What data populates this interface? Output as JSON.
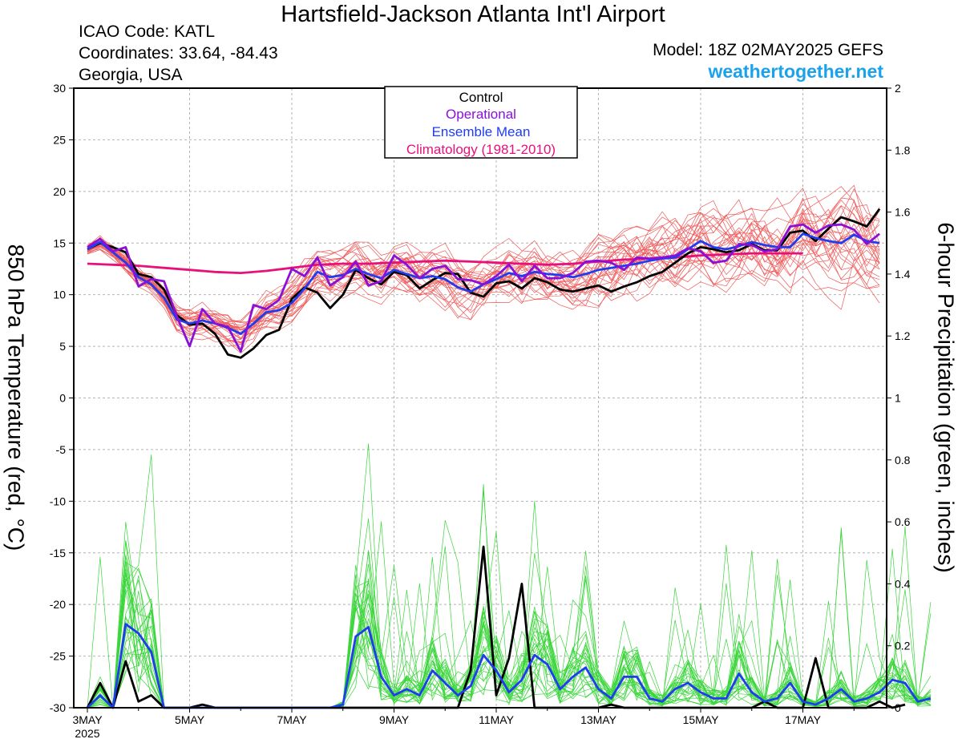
{
  "header": {
    "title": "Hartsfield-Jackson Atlanta Int'l Airport",
    "icao": "ICAO Code: KATL",
    "coordinates": "Coordinates: 33.64, -84.43",
    "region": "Georgia, USA",
    "model": "Model: 18Z 02MAY2025 GEFS",
    "website": "weathertogether.net"
  },
  "colors": {
    "temperature_members": "#f05a5a",
    "precip_members": "#3ad63a",
    "control": "#000000",
    "operational": "#8a10d8",
    "ensemble_mean": "#1f3cf0",
    "climatology": "#e8107a"
  },
  "chart_data": {
    "type": "line",
    "title": "Hartsfield-Jackson Atlanta Int'l Airport",
    "ylabel": "850 hPa Temperature (red, °C)",
    "y2label": "6-hour Precipitation (green, inches)",
    "ylim": [
      -30,
      30
    ],
    "y2lim": [
      0,
      2
    ],
    "yticks": [
      "30",
      "25",
      "20",
      "15",
      "10",
      "5",
      "0",
      "-5",
      "-10",
      "-15",
      "-20",
      "-25",
      "-30"
    ],
    "y2ticks": [
      "2",
      "1.8",
      "1.6",
      "1.4",
      "1.2",
      "1",
      "0.8",
      "0.6",
      "0.4",
      "0.2",
      "0"
    ],
    "x_start": "2025-05-03T00Z",
    "x_step_hours": 6,
    "xticks": [
      {
        "label": "3MAY",
        "sublabel": "2025",
        "day": 0
      },
      {
        "label": "5MAY",
        "day": 2
      },
      {
        "label": "7MAY",
        "day": 4
      },
      {
        "label": "9MAY",
        "day": 6
      },
      {
        "label": "11MAY",
        "day": 8
      },
      {
        "label": "13MAY",
        "day": 10
      },
      {
        "label": "15MAY",
        "day": 12
      },
      {
        "label": "17MAY",
        "day": 14
      }
    ],
    "grid": true,
    "legend": {
      "position": "top-center",
      "entries": [
        "Control",
        "Operational",
        "Ensemble Mean",
        "Climatology (1981-2010)"
      ]
    },
    "temperature": {
      "control": [
        14.4,
        15.0,
        14.6,
        14.1,
        12.0,
        11.7,
        10.5,
        8.0,
        7.1,
        7.2,
        6.2,
        4.2,
        3.9,
        4.8,
        6.1,
        6.6,
        9.6,
        10.7,
        10.2,
        8.7,
        10.0,
        12.4,
        11.6,
        11.0,
        12.2,
        11.9,
        10.6,
        11.4,
        12.1,
        12.0,
        10.2,
        9.8,
        11.1,
        11.3,
        10.6,
        11.6,
        11.2,
        10.5,
        10.3,
        10.6,
        10.9,
        10.3,
        10.8,
        11.2,
        11.8,
        12.2,
        13.1,
        14.0,
        14.6,
        14.4,
        14.1,
        14.3,
        14.9,
        14.3,
        14.3,
        16.0,
        16.2,
        15.2,
        16.4,
        17.5,
        17.1,
        16.6,
        18.3
      ],
      "operational": [
        14.6,
        15.4,
        14.2,
        14.6,
        10.8,
        11.5,
        11.3,
        7.9,
        5.0,
        8.6,
        7.2,
        6.9,
        4.5,
        9.0,
        8.6,
        9.5,
        12.5,
        11.8,
        13.6,
        10.9,
        11.7,
        13.2,
        10.9,
        11.3,
        13.8,
        12.9,
        11.6,
        12.5,
        12.8,
        11.5,
        11.4,
        11.0,
        11.8,
        12.9,
        11.3,
        12.8,
        11.6,
        11.6,
        12.1,
        13.2,
        13.3,
        13.1,
        12.4,
        13.6,
        13.5,
        13.6,
        13.8,
        14.5,
        14.2,
        13.1,
        13.3,
        14.9,
        14.8,
        14.2,
        14.4,
        16.6,
        16.8,
        16.0,
        16.7,
        16.8,
        16.3,
        14.9,
        15.9
      ],
      "ensemble_mean": [
        14.4,
        15.1,
        14.1,
        13.1,
        11.7,
        11.0,
        9.7,
        7.6,
        7.2,
        7.5,
        7.2,
        6.8,
        6.2,
        7.2,
        8.3,
        8.5,
        9.2,
        10.6,
        12.2,
        11.7,
        11.9,
        12.5,
        12.0,
        11.6,
        12.4,
        12.0,
        11.6,
        11.8,
        11.5,
        10.7,
        10.3,
        11.0,
        11.5,
        12.1,
        11.8,
        12.2,
        12.0,
        11.9,
        11.7,
        12.0,
        12.4,
        12.6,
        12.8,
        13.0,
        13.3,
        13.5,
        13.6,
        14.4,
        15.2,
        14.6,
        14.4,
        14.7,
        15.1,
        14.8,
        14.6,
        14.6,
        15.9,
        15.5,
        15.2,
        15.0,
        15.8,
        15.2,
        15.0
      ],
      "climatology": [
        13.0,
        12.9,
        12.8,
        12.6,
        12.4,
        12.2,
        12.1,
        12.3,
        12.6,
        12.9,
        13.0,
        13.0,
        13.1,
        13.2,
        13.3,
        13.2,
        13.1,
        13.0,
        12.9,
        13.0,
        13.2,
        13.4,
        13.5,
        13.6,
        13.8,
        13.9,
        14.0,
        14.0,
        14.0
      ]
    },
    "precipitation": {
      "control": [
        0,
        0.08,
        0,
        0.15,
        0.02,
        0.04,
        0,
        0,
        0,
        0.01,
        0,
        0,
        0,
        0,
        0,
        0,
        0,
        0,
        0,
        0,
        0,
        0,
        0,
        0,
        0,
        0,
        0,
        0,
        0,
        0,
        0.12,
        0.52,
        0.04,
        0.16,
        0.4,
        0,
        0,
        0,
        0,
        0,
        0,
        0.01,
        0,
        0,
        0,
        0,
        0,
        0,
        0,
        0,
        0,
        0,
        0,
        0.02,
        0,
        0,
        0,
        0.16,
        0,
        0,
        0,
        0,
        0.02,
        0,
        0.01
      ],
      "ensemble_mean": [
        0,
        0.04,
        0,
        0.27,
        0.24,
        0.18,
        0,
        0,
        0,
        0,
        0,
        0,
        0,
        0,
        0,
        0,
        0,
        0,
        0,
        0,
        0.01,
        0.23,
        0.26,
        0.1,
        0.04,
        0.06,
        0.04,
        0.12,
        0.08,
        0.04,
        0.07,
        0.17,
        0.12,
        0.05,
        0.09,
        0.17,
        0.14,
        0.06,
        0.1,
        0.13,
        0.06,
        0.03,
        0.1,
        0.1,
        0.03,
        0.02,
        0.06,
        0.08,
        0.05,
        0.03,
        0.03,
        0.11,
        0.05,
        0.02,
        0.03,
        0.08,
        0.02,
        0.01,
        0.03,
        0.06,
        0.02,
        0.03,
        0.05,
        0.09,
        0.08,
        0.02,
        0.03
      ]
    }
  }
}
